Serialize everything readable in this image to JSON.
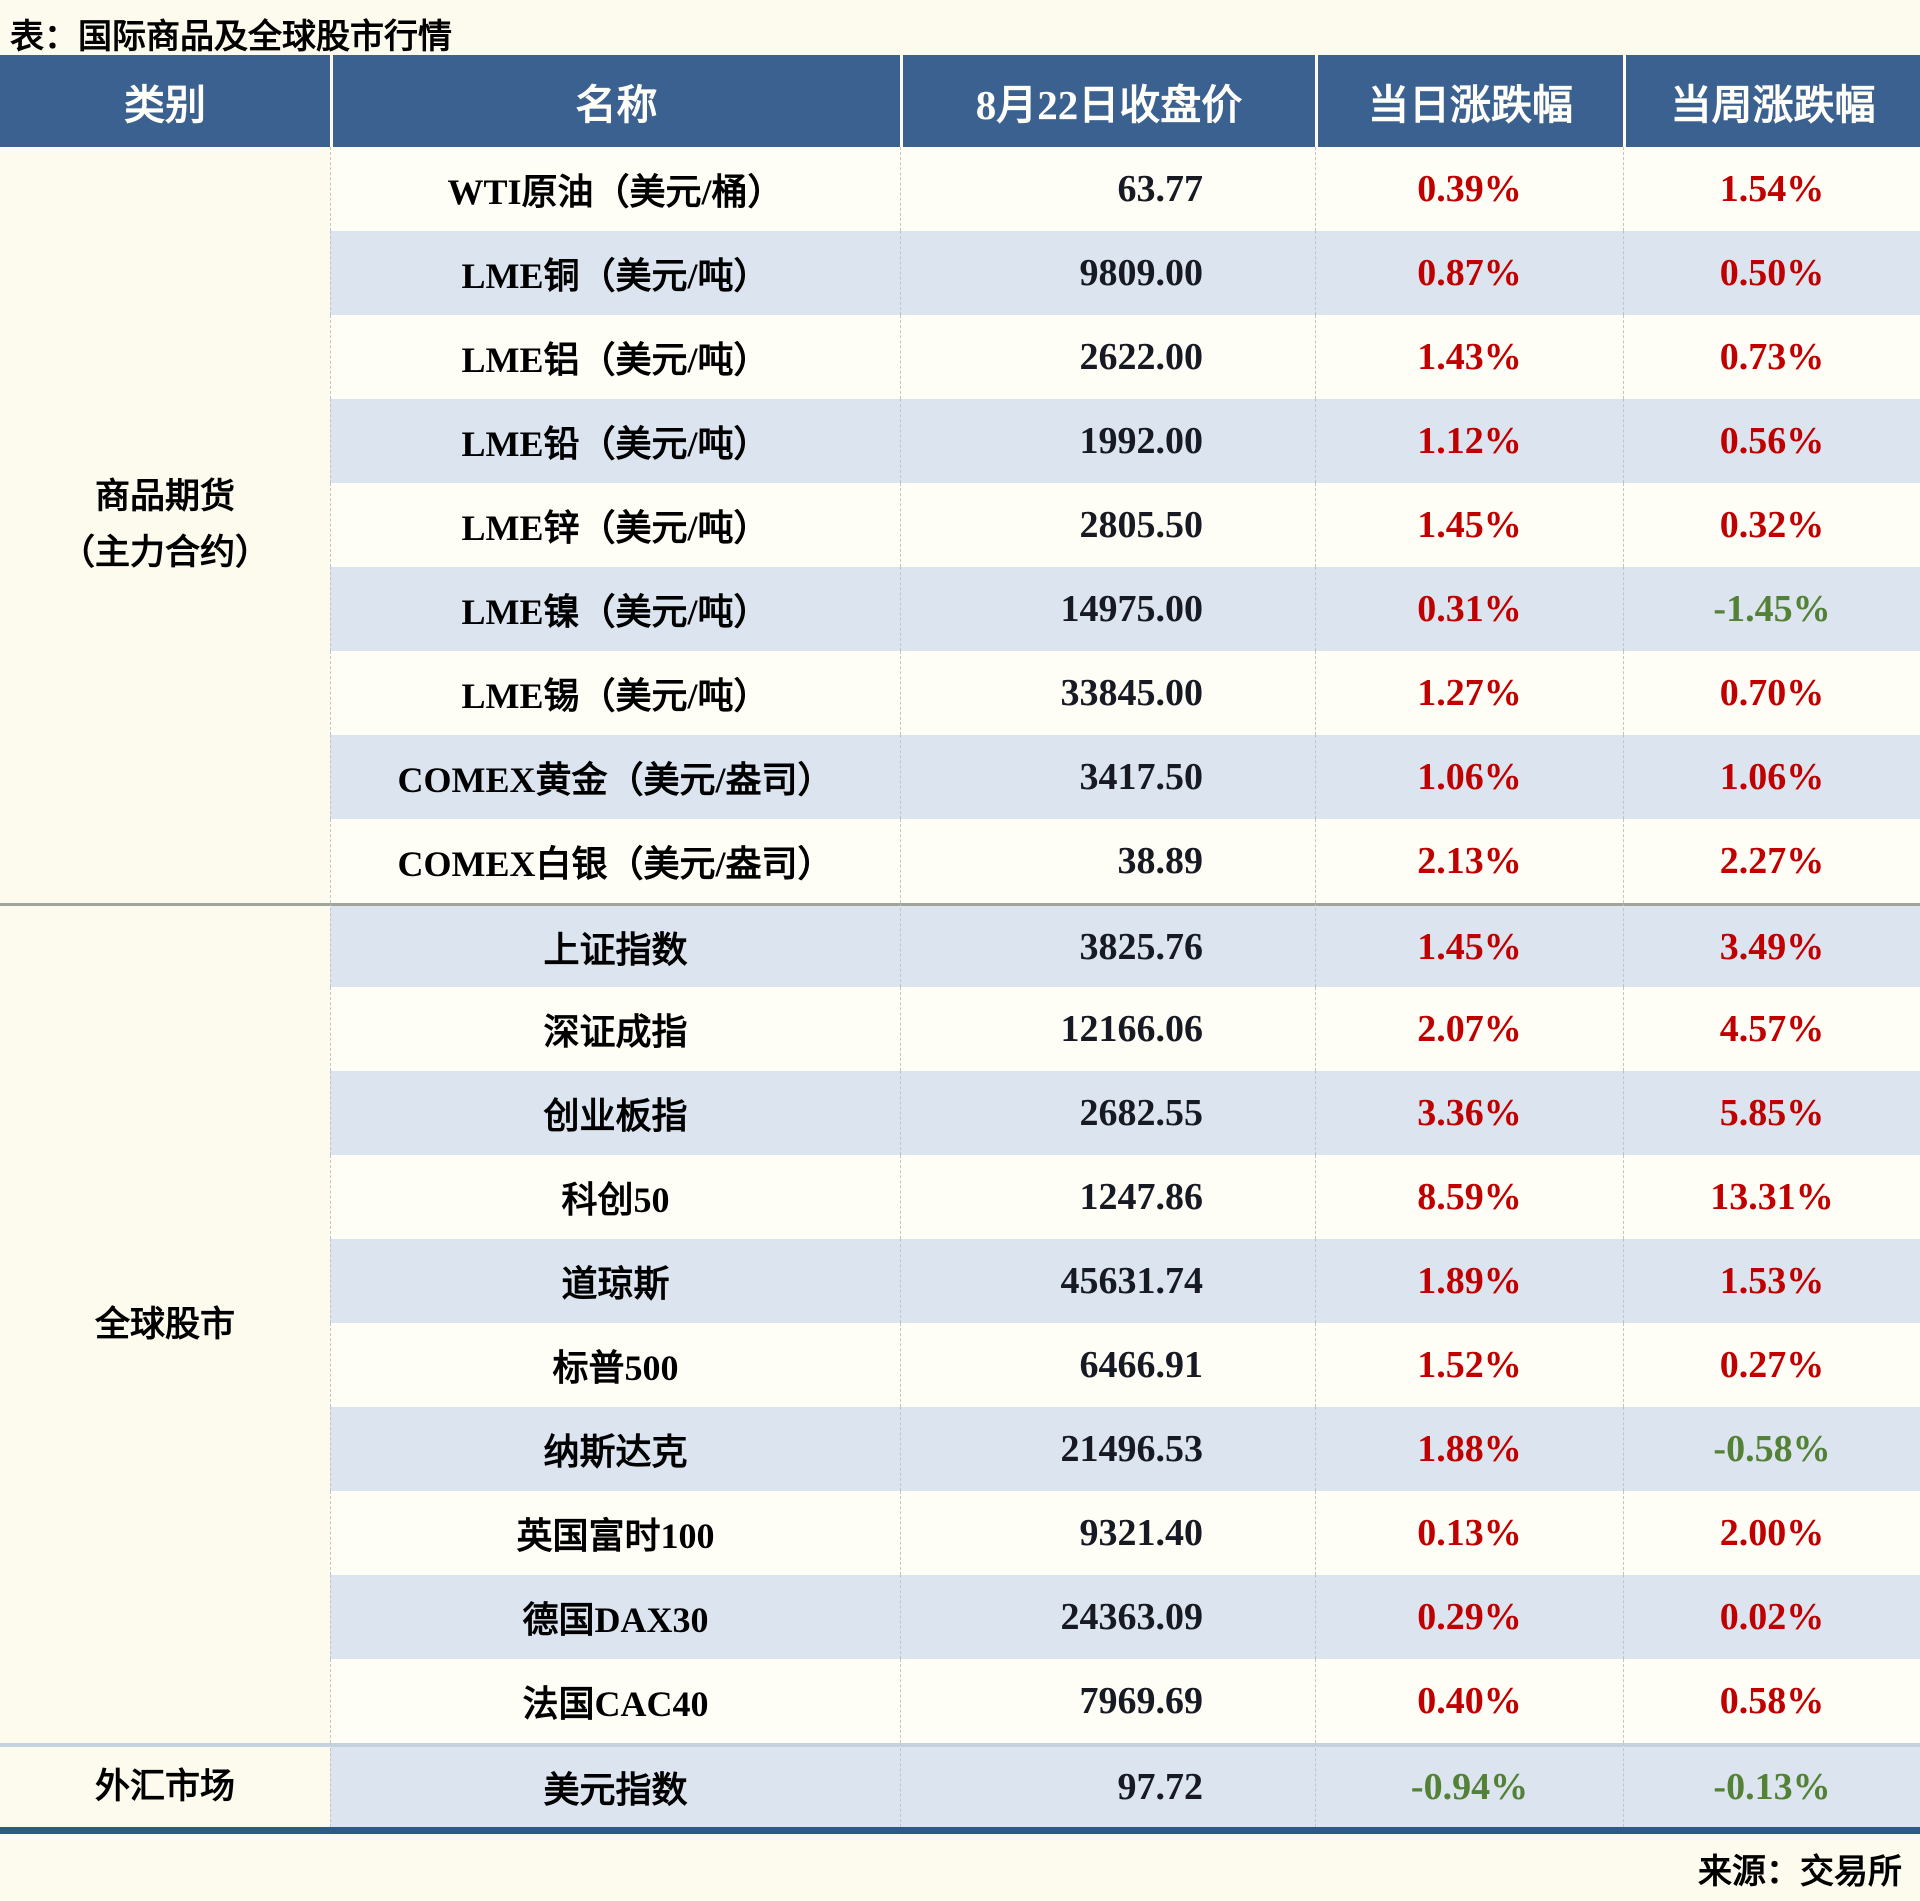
{
  "title": "表：国际商品及全球股市行情",
  "footer": {
    "source": "来源：交易所"
  },
  "colors": {
    "page_bg": "#fdfaee",
    "header_bg": "#3b6191",
    "header_text": "#fffef8",
    "row_bg": "#fffef6",
    "row_alt_bg": "#dbe4ef",
    "name_text": "#000000",
    "value_text": "#171a22",
    "positive": "#c00000",
    "negative": "#538135",
    "divider": "#c4c4c4",
    "section_divider": "#9fa59a",
    "fx_divider": "#c3d1e0",
    "bottom_border": "#2e5a88"
  },
  "chart_data": {
    "type": "table",
    "title": "表：国际商品及全球股市行情",
    "columns": [
      "类别",
      "名称",
      "8月22日收盘价",
      "当日涨跌幅",
      "当周涨跌幅"
    ],
    "close_date": "8月22日",
    "legend_note": "",
    "sections": [
      {
        "category": "商品期货（主力合约）",
        "category_lines": [
          "商品期货",
          "（主力合约）"
        ],
        "rows": [
          {
            "name": "WTI原油（美元/桶）",
            "close": "63.77",
            "day_change": "0.39%",
            "week_change": "1.54%"
          },
          {
            "name": "LME铜（美元/吨）",
            "close": "9809.00",
            "day_change": "0.87%",
            "week_change": "0.50%"
          },
          {
            "name": "LME铝（美元/吨）",
            "close": "2622.00",
            "day_change": "1.43%",
            "week_change": "0.73%"
          },
          {
            "name": "LME铅（美元/吨）",
            "close": "1992.00",
            "day_change": "1.12%",
            "week_change": "0.56%"
          },
          {
            "name": "LME锌（美元/吨）",
            "close": "2805.50",
            "day_change": "1.45%",
            "week_change": "0.32%"
          },
          {
            "name": "LME镍（美元/吨）",
            "close": "14975.00",
            "day_change": "0.31%",
            "week_change": "-1.45%"
          },
          {
            "name": "LME锡（美元/吨）",
            "close": "33845.00",
            "day_change": "1.27%",
            "week_change": "0.70%"
          },
          {
            "name": "COMEX黄金（美元/盎司）",
            "close": "3417.50",
            "day_change": "1.06%",
            "week_change": "1.06%"
          },
          {
            "name": "COMEX白银（美元/盎司）",
            "close": "38.89",
            "day_change": "2.13%",
            "week_change": "2.27%"
          }
        ]
      },
      {
        "category": "全球股市",
        "category_lines": [
          "全球股市"
        ],
        "rows": [
          {
            "name": "上证指数",
            "close": "3825.76",
            "day_change": "1.45%",
            "week_change": "3.49%"
          },
          {
            "name": "深证成指",
            "close": "12166.06",
            "day_change": "2.07%",
            "week_change": "4.57%"
          },
          {
            "name": "创业板指",
            "close": "2682.55",
            "day_change": "3.36%",
            "week_change": "5.85%"
          },
          {
            "name": "科创50",
            "close": "1247.86",
            "day_change": "8.59%",
            "week_change": "13.31%"
          },
          {
            "name": "道琼斯",
            "close": "45631.74",
            "day_change": "1.89%",
            "week_change": "1.53%"
          },
          {
            "name": "标普500",
            "close": "6466.91",
            "day_change": "1.52%",
            "week_change": "0.27%"
          },
          {
            "name": "纳斯达克",
            "close": "21496.53",
            "day_change": "1.88%",
            "week_change": "-0.58%"
          },
          {
            "name": "英国富时100",
            "close": "9321.40",
            "day_change": "0.13%",
            "week_change": "2.00%"
          },
          {
            "name": "德国DAX30",
            "close": "24363.09",
            "day_change": "0.29%",
            "week_change": "0.02%"
          },
          {
            "name": "法国CAC40",
            "close": "7969.69",
            "day_change": "0.40%",
            "week_change": "0.58%"
          }
        ]
      },
      {
        "category": "外汇市场",
        "category_lines": [
          "外汇市场"
        ],
        "rows": [
          {
            "name": "美元指数",
            "close": "97.72",
            "day_change": "-0.94%",
            "week_change": "-0.13%"
          }
        ]
      }
    ]
  }
}
